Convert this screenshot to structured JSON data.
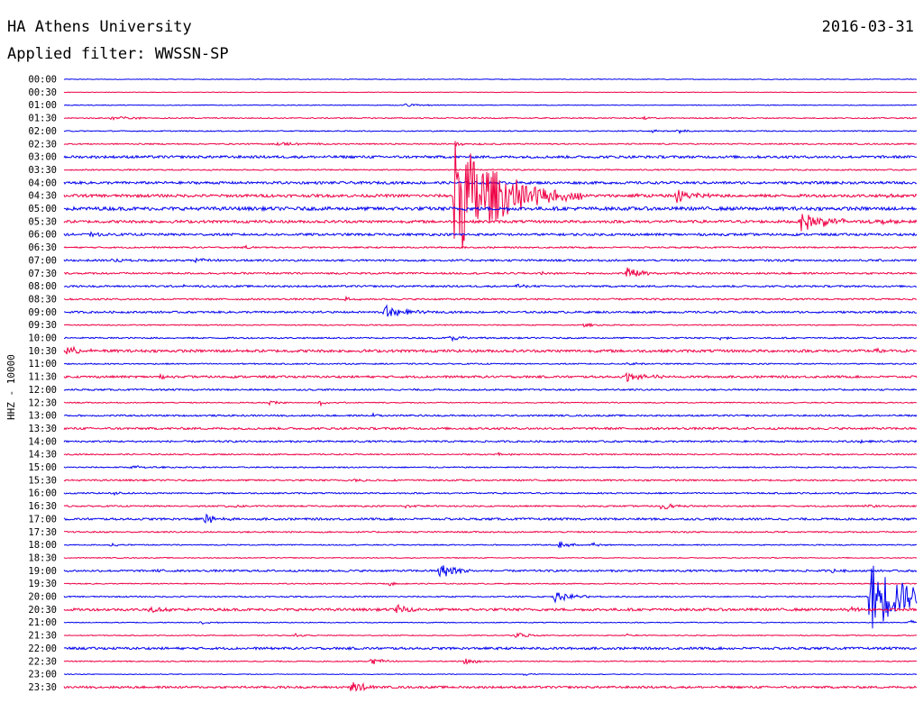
{
  "header": {
    "title": "HA Athens University",
    "date": "2016-03-31",
    "filter": "Applied filter: WWSSN-SP"
  },
  "chart_data": {
    "type": "line",
    "title": "HA Athens University",
    "subtitle": "Applied filter: WWSSN-SP",
    "date": "2016-03-31",
    "ylabel": "HHZ - 10000",
    "colors": {
      "even": "#0000ee",
      "odd": "#ee0044"
    },
    "grid": false,
    "rows": [
      {
        "label": "00:00",
        "noise": 0.4,
        "events": []
      },
      {
        "label": "00:30",
        "noise": 0.3,
        "events": []
      },
      {
        "label": "01:00",
        "noise": 0.4,
        "events": [
          {
            "t": 0.4,
            "amp": 2,
            "dur": 0.02
          }
        ]
      },
      {
        "label": "01:30",
        "noise": 0.6,
        "events": [
          {
            "t": 0.055,
            "amp": 3,
            "dur": 0.02
          },
          {
            "t": 0.68,
            "amp": 2,
            "dur": 0.01
          }
        ]
      },
      {
        "label": "02:00",
        "noise": 0.6,
        "events": [
          {
            "t": 0.69,
            "amp": 2,
            "dur": 0.01
          },
          {
            "t": 0.72,
            "amp": 2,
            "dur": 0.01
          }
        ]
      },
      {
        "label": "02:30",
        "noise": 0.7,
        "events": [
          {
            "t": 0.25,
            "amp": 2,
            "dur": 0.03
          },
          {
            "t": 0.46,
            "amp": 2,
            "dur": 0.02
          }
        ]
      },
      {
        "label": "03:00",
        "noise": 1.4,
        "events": []
      },
      {
        "label": "03:30",
        "noise": 0.7,
        "events": []
      },
      {
        "label": "04:00",
        "noise": 1.4,
        "events": []
      },
      {
        "label": "04:30",
        "noise": 1.6,
        "events": [
          {
            "t": 0.4575,
            "amp": 72,
            "dur": 0.05
          },
          {
            "t": 0.53,
            "amp": 4,
            "dur": 0.015
          },
          {
            "t": 0.67,
            "amp": 3,
            "dur": 0.01
          },
          {
            "t": 0.718,
            "amp": 9,
            "dur": 0.02
          },
          {
            "t": 0.965,
            "amp": 3,
            "dur": 0.01
          }
        ]
      },
      {
        "label": "05:00",
        "noise": 1.9,
        "events": []
      },
      {
        "label": "05:30",
        "noise": 1.5,
        "events": [
          {
            "t": 0.865,
            "amp": 11,
            "dur": 0.03
          },
          {
            "t": 0.9,
            "amp": 3,
            "dur": 0.02
          },
          {
            "t": 0.96,
            "amp": 3,
            "dur": 0.01
          }
        ]
      },
      {
        "label": "06:00",
        "noise": 1.3,
        "events": [
          {
            "t": 0.03,
            "amp": 2,
            "dur": 0.01
          }
        ]
      },
      {
        "label": "06:30",
        "noise": 0.8,
        "events": [
          {
            "t": 0.21,
            "amp": 2,
            "dur": 0.01
          }
        ]
      },
      {
        "label": "07:00",
        "noise": 1.1,
        "events": [
          {
            "t": 0.055,
            "amp": 2,
            "dur": 0.02
          },
          {
            "t": 0.155,
            "amp": 2,
            "dur": 0.02
          }
        ]
      },
      {
        "label": "07:30",
        "noise": 1.0,
        "events": [
          {
            "t": 0.66,
            "amp": 6,
            "dur": 0.02
          },
          {
            "t": 0.56,
            "amp": 2,
            "dur": 0.01
          }
        ]
      },
      {
        "label": "08:00",
        "noise": 1.0,
        "events": [
          {
            "t": 0.14,
            "amp": 2,
            "dur": 0.01
          },
          {
            "t": 0.53,
            "amp": 3,
            "dur": 0.01
          }
        ]
      },
      {
        "label": "08:30",
        "noise": 0.9,
        "events": [
          {
            "t": 0.33,
            "amp": 2,
            "dur": 0.01
          }
        ]
      },
      {
        "label": "09:00",
        "noise": 1.1,
        "events": [
          {
            "t": 0.375,
            "amp": 8,
            "dur": 0.02
          },
          {
            "t": 0.29,
            "amp": 2,
            "dur": 0.01
          }
        ]
      },
      {
        "label": "09:30",
        "noise": 0.6,
        "events": [
          {
            "t": 0.61,
            "amp": 2,
            "dur": 0.01
          }
        ]
      },
      {
        "label": "10:00",
        "noise": 0.8,
        "events": [
          {
            "t": 0.45,
            "amp": 3,
            "dur": 0.02
          },
          {
            "t": 0.77,
            "amp": 2,
            "dur": 0.01
          }
        ]
      },
      {
        "label": "10:30",
        "noise": 1.5,
        "events": [
          {
            "t": 0.004,
            "amp": 5,
            "dur": 0.015
          },
          {
            "t": 0.95,
            "amp": 2,
            "dur": 0.01
          }
        ]
      },
      {
        "label": "11:00",
        "noise": 0.7,
        "events": [
          {
            "t": 0.66,
            "amp": 2,
            "dur": 0.01
          }
        ]
      },
      {
        "label": "11:30",
        "noise": 1.2,
        "events": [
          {
            "t": 0.66,
            "amp": 6,
            "dur": 0.02
          },
          {
            "t": 0.11,
            "amp": 2,
            "dur": 0.01
          }
        ]
      },
      {
        "label": "12:00",
        "noise": 0.9,
        "events": []
      },
      {
        "label": "12:30",
        "noise": 0.6,
        "events": [
          {
            "t": 0.24,
            "amp": 3,
            "dur": 0.01
          },
          {
            "t": 0.3,
            "amp": 3,
            "dur": 0.01
          }
        ]
      },
      {
        "label": "13:00",
        "noise": 0.9,
        "events": [
          {
            "t": 0.36,
            "amp": 2,
            "dur": 0.02
          }
        ]
      },
      {
        "label": "13:30",
        "noise": 1.2,
        "events": []
      },
      {
        "label": "14:00",
        "noise": 1.0,
        "events": [
          {
            "t": 0.93,
            "amp": 2,
            "dur": 0.01
          }
        ]
      },
      {
        "label": "14:30",
        "noise": 0.7,
        "events": [
          {
            "t": 0.51,
            "amp": 2,
            "dur": 0.01
          }
        ]
      },
      {
        "label": "15:00",
        "noise": 0.7,
        "events": [
          {
            "t": 0.08,
            "amp": 2,
            "dur": 0.02
          }
        ]
      },
      {
        "label": "15:30",
        "noise": 0.9,
        "events": [
          {
            "t": 0.34,
            "amp": 2,
            "dur": 0.02
          }
        ]
      },
      {
        "label": "16:00",
        "noise": 0.8,
        "events": [
          {
            "t": 0.06,
            "amp": 2,
            "dur": 0.01
          }
        ]
      },
      {
        "label": "16:30",
        "noise": 0.8,
        "events": [
          {
            "t": 0.19,
            "amp": 2,
            "dur": 0.02
          },
          {
            "t": 0.4,
            "amp": 2,
            "dur": 0.02
          },
          {
            "t": 0.7,
            "amp": 4,
            "dur": 0.015
          },
          {
            "t": 0.94,
            "amp": 2,
            "dur": 0.01
          }
        ]
      },
      {
        "label": "17:00",
        "noise": 1.2,
        "events": [
          {
            "t": 0.165,
            "amp": 5,
            "dur": 0.015
          }
        ]
      },
      {
        "label": "17:30",
        "noise": 0.8,
        "events": []
      },
      {
        "label": "18:00",
        "noise": 0.6,
        "events": [
          {
            "t": 0.055,
            "amp": 2,
            "dur": 0.01
          },
          {
            "t": 0.58,
            "amp": 4,
            "dur": 0.015
          },
          {
            "t": 0.62,
            "amp": 2,
            "dur": 0.01
          }
        ]
      },
      {
        "label": "18:30",
        "noise": 0.5,
        "events": []
      },
      {
        "label": "19:00",
        "noise": 1.1,
        "events": [
          {
            "t": 0.11,
            "amp": 2,
            "dur": 0.01
          },
          {
            "t": 0.44,
            "amp": 9,
            "dur": 0.02
          },
          {
            "t": 0.9,
            "amp": 2,
            "dur": 0.01
          }
        ]
      },
      {
        "label": "19:30",
        "noise": 0.6,
        "events": [
          {
            "t": 0.38,
            "amp": 2,
            "dur": 0.01
          }
        ]
      },
      {
        "label": "20:00",
        "noise": 0.7,
        "events": [
          {
            "t": 0.575,
            "amp": 6,
            "dur": 0.02
          },
          {
            "t": 0.945,
            "amp": 42,
            "dur": 0.04
          }
        ]
      },
      {
        "label": "20:30",
        "noise": 1.4,
        "events": [
          {
            "t": 0.1,
            "amp": 5,
            "dur": 0.015
          },
          {
            "t": 0.39,
            "amp": 5,
            "dur": 0.015
          },
          {
            "t": 0.92,
            "amp": 3,
            "dur": 0.01
          }
        ]
      },
      {
        "label": "21:00",
        "noise": 0.5,
        "events": [
          {
            "t": 0.16,
            "amp": 2,
            "dur": 0.01
          },
          {
            "t": 0.99,
            "amp": 3,
            "dur": 0.01
          }
        ]
      },
      {
        "label": "21:30",
        "noise": 0.5,
        "events": [
          {
            "t": 0.27,
            "amp": 2,
            "dur": 0.01
          },
          {
            "t": 0.53,
            "amp": 4,
            "dur": 0.015
          },
          {
            "t": 0.66,
            "amp": 2,
            "dur": 0.01
          }
        ]
      },
      {
        "label": "22:00",
        "noise": 1.3,
        "events": []
      },
      {
        "label": "22:30",
        "noise": 0.6,
        "events": [
          {
            "t": 0.36,
            "amp": 4,
            "dur": 0.015
          },
          {
            "t": 0.47,
            "amp": 4,
            "dur": 0.015
          }
        ]
      },
      {
        "label": "23:00",
        "noise": 0.4,
        "events": [
          {
            "t": 0.54,
            "amp": 2,
            "dur": 0.01
          }
        ]
      },
      {
        "label": "23:30",
        "noise": 1.2,
        "events": [
          {
            "t": 0.335,
            "amp": 8,
            "dur": 0.015
          }
        ]
      }
    ]
  }
}
